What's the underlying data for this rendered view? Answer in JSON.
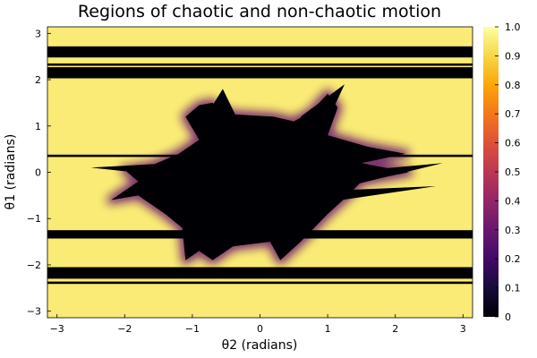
{
  "chart_data": {
    "type": "heatmap",
    "title": "Regions of chaotic and non-chaotic motion",
    "xlabel": "θ2 (radians)",
    "ylabel": "θ1 (radians)",
    "xlim": [
      -3.1416,
      3.1416
    ],
    "ylim": [
      -3.1416,
      3.1416
    ],
    "x_ticks": [
      -3,
      -2,
      -1,
      0,
      1,
      2,
      3
    ],
    "x_tick_labels": [
      "−3",
      "−2",
      "−1",
      "0",
      "1",
      "2",
      "3"
    ],
    "y_ticks": [
      -3,
      -2,
      -1,
      0,
      1,
      2,
      3
    ],
    "y_tick_labels": [
      "−3",
      "−2",
      "−1",
      "0",
      "1",
      "2",
      "3"
    ],
    "colorbar": {
      "colormap": "inferno",
      "range": [
        0,
        1
      ],
      "ticks": [
        0,
        0.1,
        0.2,
        0.3,
        0.4,
        0.5,
        0.6,
        0.7,
        0.8,
        0.9,
        1.0
      ],
      "tick_labels": [
        "0",
        "0.1",
        "0.2",
        "0.3",
        "0.4",
        "0.5",
        "0.6",
        "0.7",
        "0.8",
        "0.9",
        "1.0"
      ]
    },
    "background_value": 0.95,
    "regions": [
      {
        "shape": "band",
        "theta1_range": [
          2.48,
          2.72
        ],
        "value": 0.0
      },
      {
        "shape": "band",
        "theta1_range": [
          2.3,
          2.35
        ],
        "value": 0.0
      },
      {
        "shape": "band",
        "theta1_range": [
          2.03,
          2.27
        ],
        "value": 0.0
      },
      {
        "shape": "band",
        "theta1_range": [
          0.33,
          0.38
        ],
        "value": 0.0
      },
      {
        "shape": "band",
        "theta1_range": [
          -1.43,
          -1.25
        ],
        "value": 0.0
      },
      {
        "shape": "band",
        "theta1_range": [
          -2.3,
          -2.05
        ],
        "value": 0.0
      },
      {
        "shape": "band",
        "theta1_range": [
          -2.41,
          -2.36
        ],
        "value": 0.0
      },
      {
        "shape": "polygon",
        "value": 0.0,
        "vertices_theta2_theta1": [
          [
            -1.1,
            1.2
          ],
          [
            -0.9,
            1.45
          ],
          [
            -0.7,
            1.5
          ],
          [
            -0.62,
            1.35
          ],
          [
            -0.4,
            1.25
          ],
          [
            0.2,
            1.2
          ],
          [
            0.5,
            1.1
          ],
          [
            0.75,
            1.3
          ],
          [
            1.0,
            1.7
          ],
          [
            1.15,
            1.4
          ],
          [
            1.0,
            0.8
          ],
          [
            1.6,
            0.55
          ],
          [
            2.15,
            0.4
          ],
          [
            1.5,
            0.2
          ],
          [
            2.2,
            0.0
          ],
          [
            1.5,
            -0.2
          ],
          [
            1.3,
            -0.5
          ],
          [
            1.0,
            -0.9
          ],
          [
            0.8,
            -1.2
          ],
          [
            0.6,
            -1.5
          ],
          [
            0.3,
            -1.9
          ],
          [
            0.15,
            -1.5
          ],
          [
            -0.4,
            -1.6
          ],
          [
            -0.7,
            -1.9
          ],
          [
            -0.9,
            -1.7
          ],
          [
            -1.1,
            -1.9
          ],
          [
            -1.15,
            -1.2
          ],
          [
            -1.4,
            -0.9
          ],
          [
            -1.8,
            -0.5
          ],
          [
            -2.2,
            -0.6
          ],
          [
            -1.8,
            -0.2
          ],
          [
            -2.0,
            0.05
          ],
          [
            -1.6,
            0.15
          ],
          [
            -1.2,
            0.4
          ],
          [
            -0.9,
            0.7
          ]
        ]
      },
      {
        "shape": "spike",
        "value": 0.0,
        "vertices_theta2_theta1": [
          [
            -0.85,
            1.1
          ],
          [
            -0.55,
            1.8
          ],
          [
            -0.35,
            1.2
          ]
        ]
      },
      {
        "shape": "spike",
        "value": 0.0,
        "vertices_theta2_theta1": [
          [
            0.6,
            1.2
          ],
          [
            1.25,
            1.9
          ],
          [
            0.9,
            0.8
          ]
        ]
      },
      {
        "shape": "spike",
        "value": 0.0,
        "vertices_theta2_theta1": [
          [
            -1.3,
            0.2
          ],
          [
            -2.5,
            0.1
          ],
          [
            -1.2,
            -0.1
          ]
        ]
      },
      {
        "shape": "spike",
        "value": 0.0,
        "vertices_theta2_theta1": [
          [
            1.2,
            0.0
          ],
          [
            2.7,
            0.2
          ],
          [
            1.3,
            -0.3
          ]
        ]
      },
      {
        "shape": "spike",
        "value": 0.0,
        "vertices_theta2_theta1": [
          [
            1.0,
            -0.4
          ],
          [
            2.6,
            -0.3
          ],
          [
            1.2,
            -0.6
          ]
        ]
      }
    ],
    "halo_value": 0.3
  }
}
